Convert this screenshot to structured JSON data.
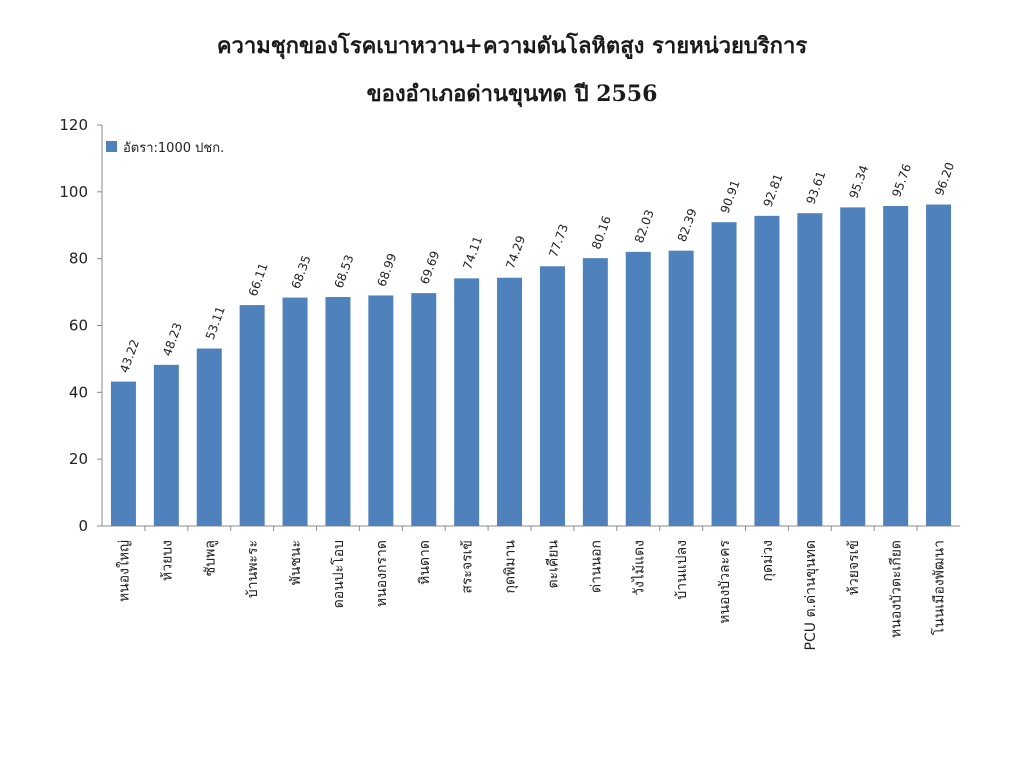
{
  "chart_data": {
    "type": "bar",
    "title": "ความชุกของโรคเบาหวาน+ความดันโลหิตสูง รายหน่วยบริการ",
    "subtitle": "ของอำเภอด่านขุนทด ปี 2556",
    "categories": [
      "หนองใหญ่",
      "ห้วยบง",
      "ซับพลู",
      "บ้านพะระ",
      "พันชนะ",
      "ดอนปะโอบ",
      "หนองกราด",
      "หินดาด",
      "สระจรเข้",
      "กุดพิมาน",
      "ตะเคียน",
      "ด่านนอก",
      "วังไม้แดง",
      "บ้านแปลง",
      "หนองบัวละคร",
      "กุดม่วง",
      "PCU ต.ด่านขุนทด",
      "ห้วยจรเข้",
      "หนองบัวตะเกียด",
      "โนนเมืองพัฒนา"
    ],
    "series": [
      {
        "name": "อัตรา:1000 ปชก.",
        "values": [
          43.22,
          48.23,
          53.11,
          66.11,
          68.35,
          68.53,
          68.99,
          69.69,
          74.11,
          74.29,
          77.73,
          80.16,
          82.03,
          82.39,
          90.91,
          92.81,
          93.61,
          95.34,
          95.76,
          96.2
        ],
        "labels": [
          "43.22",
          "48.23",
          "53.11",
          "66.11",
          "68.35",
          "68.53",
          "68.99",
          "69.69",
          "74.11",
          "74.29",
          "77.73",
          "80.16",
          "82.03",
          "82.39",
          "90.91",
          "92.81",
          "93.61",
          "95.34",
          "95.76",
          "96.20"
        ]
      }
    ],
    "yticks": [
      "0",
      "20",
      "40",
      "60",
      "80",
      "100",
      "120"
    ],
    "ylim": [
      0,
      120
    ],
    "grid": false,
    "legend": "top-left",
    "bar_color": "#4f81bd"
  }
}
